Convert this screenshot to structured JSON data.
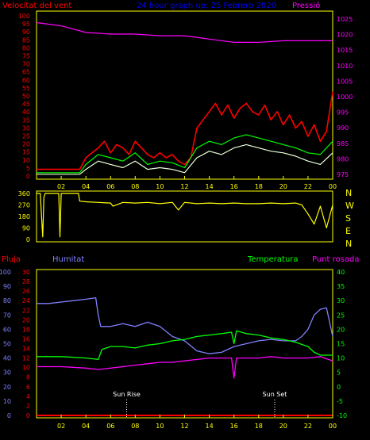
{
  "colors": {
    "wind": "#ff0000",
    "gust": "#e8ffd8",
    "avg": "#00ff00",
    "pressure": "#ff00ff",
    "direction": "#ffff00",
    "rain": "#ff0000",
    "humidity": "#8080ff",
    "temperature": "#00ff00",
    "dewpoint": "#ff00ff",
    "axis": "#ffff00",
    "title": "#0000ff"
  },
  "chart_data": [
    {
      "type": "line",
      "title": "24 hour graph up:   25 Febrero 2020",
      "left_label": "Velocitat del vent",
      "right_label": "Pressió",
      "xticks": [
        "02",
        "04",
        "06",
        "08",
        "10",
        "12",
        "14",
        "16",
        "18",
        "20",
        "22",
        "00"
      ],
      "x_range": [
        0,
        24
      ],
      "left_ylim": [
        0,
        100
      ],
      "left_ticks": [
        "100",
        "95",
        "90",
        "85",
        "80",
        "75",
        "70",
        "65",
        "60",
        "55",
        "50",
        "45",
        "40",
        "35",
        "30",
        "25",
        "20",
        "15",
        "10",
        "5",
        "0"
      ],
      "right_ylim": [
        975,
        1025
      ],
      "right_ticks": [
        "1025",
        "1020",
        "1015",
        "1010",
        "1005",
        "1000",
        "995",
        "990",
        "985",
        "980",
        "975"
      ],
      "series": [
        {
          "key": "pressure",
          "axis": "right",
          "x": [
            0,
            2,
            4,
            6,
            8,
            10,
            12,
            14,
            16,
            18,
            20,
            22,
            24
          ],
          "y": [
            1022,
            1021,
            1019,
            1018.5,
            1018.5,
            1018,
            1018,
            1017,
            1016,
            1016,
            1016.5,
            1016.5,
            1016.5
          ]
        },
        {
          "key": "wind",
          "axis": "left",
          "x": [
            0,
            2,
            3.5,
            4,
            4.5,
            5,
            5.5,
            6,
            6.5,
            7,
            7.5,
            8,
            8.5,
            9,
            9.5,
            10,
            10.5,
            11,
            11.5,
            12,
            12.5,
            13,
            13.5,
            14,
            14.5,
            15,
            15.5,
            16,
            16.5,
            17,
            17.5,
            18,
            18.5,
            19,
            19.5,
            20,
            20.5,
            21,
            21.5,
            22,
            22.5,
            23,
            23.5,
            24
          ],
          "y": [
            5,
            5,
            5,
            12,
            15,
            18,
            22,
            15,
            20,
            18,
            14,
            22,
            18,
            14,
            12,
            15,
            12,
            14,
            10,
            8,
            12,
            30,
            35,
            40,
            45,
            38,
            44,
            36,
            42,
            45,
            40,
            38,
            44,
            35,
            40,
            32,
            38,
            30,
            34,
            25,
            32,
            22,
            28,
            52
          ]
        },
        {
          "key": "avg",
          "axis": "left",
          "x": [
            0,
            2,
            3.5,
            4,
            5,
            6,
            7,
            8,
            9,
            10,
            11,
            12,
            13,
            14,
            15,
            16,
            17,
            18,
            19,
            20,
            21,
            22,
            23,
            24
          ],
          "y": [
            3,
            3,
            3,
            8,
            14,
            12,
            10,
            15,
            8,
            10,
            9,
            6,
            18,
            22,
            20,
            24,
            26,
            24,
            22,
            20,
            18,
            15,
            14,
            22
          ]
        },
        {
          "key": "gust",
          "axis": "left",
          "x": [
            0,
            2,
            3.5,
            4,
            5,
            6,
            7,
            8,
            9,
            10,
            11,
            12,
            13,
            14,
            15,
            16,
            17,
            18,
            19,
            20,
            21,
            22,
            23,
            24
          ],
          "y": [
            2,
            2,
            2,
            5,
            10,
            8,
            6,
            10,
            5,
            6,
            5,
            3,
            12,
            16,
            14,
            18,
            20,
            18,
            16,
            15,
            13,
            10,
            8,
            15
          ]
        }
      ]
    },
    {
      "type": "line",
      "x_range": [
        0,
        24
      ],
      "ylim": [
        0,
        360
      ],
      "yticks": [
        "360",
        "270",
        "180",
        "90",
        "0"
      ],
      "compass": [
        "N",
        "W",
        "S",
        "E",
        "N"
      ],
      "series": [
        {
          "key": "direction",
          "x": [
            0,
            0.3,
            0.5,
            0.6,
            0.7,
            1.5,
            1.8,
            1.9,
            2.0,
            3.4,
            3.5,
            4.0,
            5.0,
            6.0,
            6.2,
            7.0,
            8.0,
            9.0,
            10.0,
            11.0,
            11.5,
            12.0,
            13.0,
            14.0,
            15.0,
            16.0,
            17.0,
            18.0,
            19.0,
            20.0,
            21.0,
            21.5,
            22.0,
            22.5,
            23.0,
            23.5,
            24.0
          ],
          "y": [
            360,
            360,
            20,
            330,
            360,
            360,
            360,
            20,
            360,
            360,
            300,
            295,
            290,
            285,
            260,
            290,
            285,
            290,
            280,
            290,
            230,
            290,
            280,
            285,
            280,
            285,
            280,
            280,
            285,
            280,
            285,
            270,
            200,
            120,
            260,
            90,
            270
          ]
        }
      ]
    },
    {
      "type": "line",
      "left_label": "Pluja",
      "humidity_label": "Humitat",
      "temp_label": "Temperatura",
      "dew_label": "Punt rosada",
      "rain_ylim": [
        0,
        30
      ],
      "rain_ticks": [
        "30",
        "28",
        "26",
        "24",
        "22",
        "20",
        "18",
        "16",
        "14",
        "12",
        "10",
        "8",
        "6",
        "4",
        "2",
        "0"
      ],
      "humidity_ylim": [
        0,
        100
      ],
      "humidity_ticks": [
        "100",
        "90",
        "80",
        "70",
        "60",
        "50",
        "40",
        "30",
        "20",
        "10",
        "0"
      ],
      "temp_ylim": [
        -10,
        40
      ],
      "temp_ticks": [
        "40",
        "35",
        "30",
        "25",
        "20",
        "15",
        "10",
        "5",
        "0",
        "-5",
        "-10"
      ],
      "annotations": [
        {
          "text": "Sun Rise",
          "x": 7.3
        },
        {
          "text": "Sun Set",
          "x": 19.3
        }
      ],
      "series": [
        {
          "key": "humidity",
          "axis": "humidity",
          "x": [
            0,
            1,
            2,
            3,
            4,
            4.8,
            5.0,
            5.2,
            6,
            7,
            8,
            9,
            10,
            11,
            12,
            13,
            14,
            15,
            16,
            17,
            18,
            19,
            20,
            21,
            21.5,
            22,
            22.5,
            23,
            23.5,
            24
          ],
          "y": [
            78,
            78,
            79,
            80,
            81,
            82,
            70,
            62,
            62,
            64,
            62,
            65,
            62,
            55,
            52,
            45,
            43,
            44,
            48,
            50,
            52,
            53,
            52,
            52,
            55,
            60,
            70,
            74,
            75,
            55
          ]
        },
        {
          "key": "temperature",
          "axis": "temp",
          "x": [
            0,
            2,
            4,
            5,
            5.3,
            6,
            7,
            8,
            9,
            10,
            11,
            12,
            13,
            14,
            15,
            15.8,
            16.0,
            16.2,
            17,
            18,
            19,
            20,
            21,
            22,
            22.5,
            23,
            24
          ],
          "y": [
            10.5,
            10.5,
            10,
            9.5,
            13,
            14,
            14,
            13.5,
            14.5,
            15,
            16,
            16.5,
            17.5,
            18,
            18.5,
            19,
            15,
            19.5,
            18.5,
            18,
            17,
            16.5,
            15.5,
            14,
            12,
            11,
            11
          ]
        },
        {
          "key": "dewpoint",
          "axis": "temp",
          "x": [
            0,
            2,
            4,
            5,
            6,
            7,
            8,
            9,
            10,
            11,
            12,
            13,
            14,
            15,
            15.8,
            16.0,
            16.2,
            17,
            18,
            19,
            20,
            21,
            22,
            23,
            24
          ],
          "y": [
            7,
            7,
            6.5,
            6,
            6.5,
            7,
            7.5,
            8,
            8.5,
            8.5,
            9,
            9.5,
            10,
            10,
            10,
            3,
            10,
            10,
            10,
            10.5,
            10,
            10,
            10,
            10.5,
            9
          ]
        },
        {
          "key": "rain",
          "axis": "rain",
          "x": [
            0,
            24
          ],
          "y": [
            0,
            0
          ]
        }
      ]
    }
  ]
}
